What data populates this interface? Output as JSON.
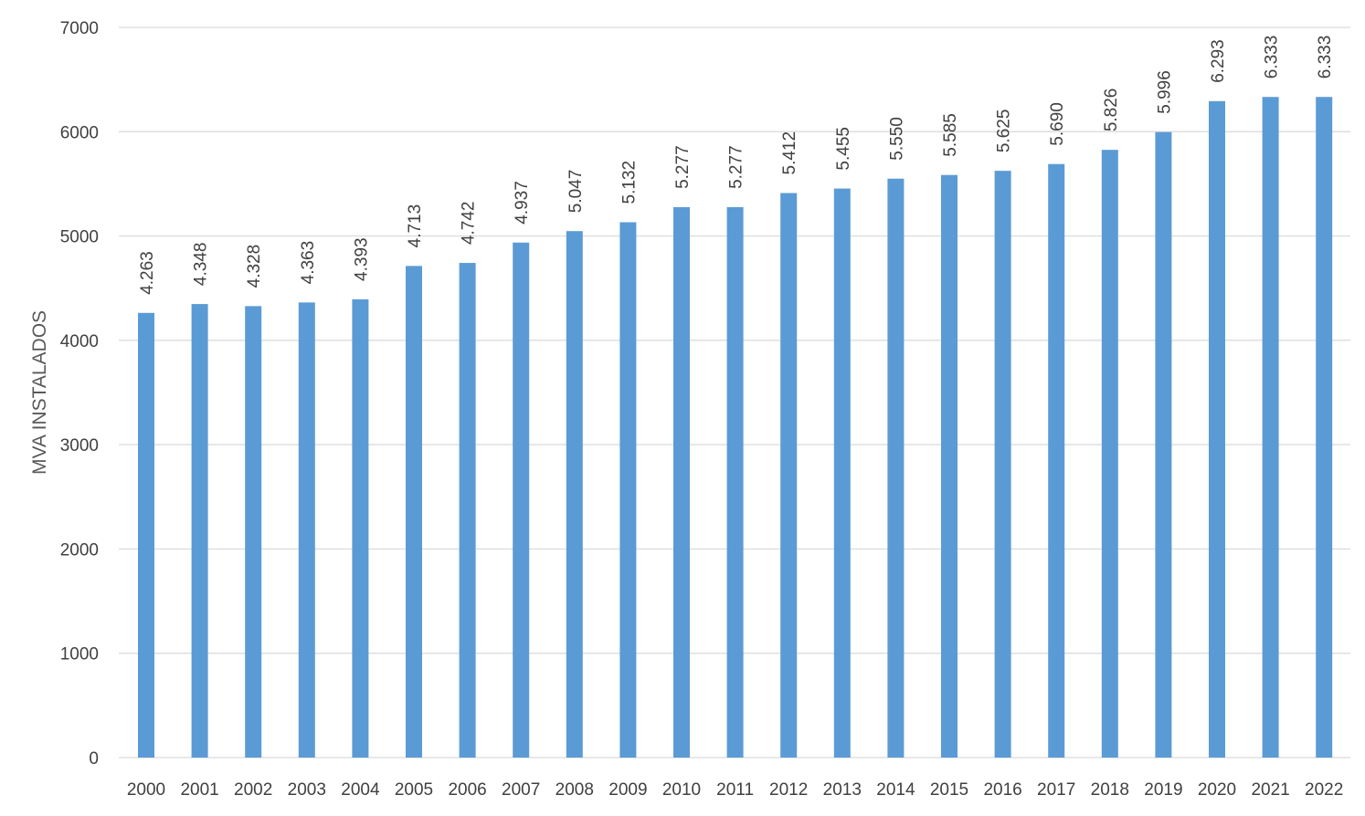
{
  "chart_data": {
    "type": "bar",
    "title": "",
    "xlabel": "",
    "ylabel": "MVA INSTALADOS",
    "ylim": [
      0,
      7000
    ],
    "yticks": [
      0,
      1000,
      2000,
      3000,
      4000,
      5000,
      6000,
      7000
    ],
    "grid": true,
    "legend": "none",
    "bar_color": "#5b9bd5",
    "grid_color": "#d9d9d9",
    "categories": [
      "2000",
      "2001",
      "2002",
      "2003",
      "2004",
      "2005",
      "2006",
      "2007",
      "2008",
      "2009",
      "2010",
      "2011",
      "2012",
      "2013",
      "2014",
      "2015",
      "2016",
      "2017",
      "2018",
      "2019",
      "2020",
      "2021",
      "2022"
    ],
    "values": [
      4263,
      4348,
      4328,
      4363,
      4393,
      4713,
      4742,
      4937,
      5047,
      5132,
      5277,
      5277,
      5412,
      5455,
      5550,
      5585,
      5625,
      5690,
      5826,
      5996,
      6293,
      6333,
      6333
    ],
    "data_labels": [
      "4.263",
      "4.348",
      "4.328",
      "4.363",
      "4.393",
      "4.713",
      "4.742",
      "4.937",
      "5.047",
      "5.132",
      "5.277",
      "5.277",
      "5.412",
      "5.455",
      "5.550",
      "5.585",
      "5.625",
      "5.690",
      "5.826",
      "5.996",
      "6.293",
      "6.333",
      "6.333"
    ]
  }
}
